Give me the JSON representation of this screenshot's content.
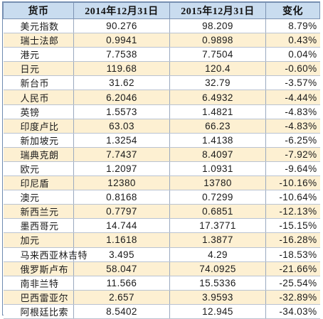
{
  "table": {
    "headers": [
      "货币",
      "2014年12月31日",
      "2015年12月31日",
      "变化"
    ],
    "rows": [
      {
        "currency": "美元指数",
        "v2014": "90.276",
        "v2015": "98.209",
        "change": "8.79%"
      },
      {
        "currency": "瑞士法郎",
        "v2014": "0.9941",
        "v2015": "0.9898",
        "change": "0.43%"
      },
      {
        "currency": "港元",
        "v2014": "7.7538",
        "v2015": "7.7504",
        "change": "0.04%"
      },
      {
        "currency": "日元",
        "v2014": "119.68",
        "v2015": "120.4",
        "change": "-0.60%"
      },
      {
        "currency": "新台币",
        "v2014": "31.62",
        "v2015": "32.79",
        "change": "-3.57%"
      },
      {
        "currency": "人民币",
        "v2014": "6.2046",
        "v2015": "6.4932",
        "change": "-4.44%"
      },
      {
        "currency": "英镑",
        "v2014": "1.5573",
        "v2015": "1.4821",
        "change": "-4.83%"
      },
      {
        "currency": "印度卢比",
        "v2014": "63.03",
        "v2015": "66.23",
        "change": "-4.83%"
      },
      {
        "currency": "新加坡元",
        "v2014": "1.3254",
        "v2015": "1.4138",
        "change": "-6.25%"
      },
      {
        "currency": "瑞典克朗",
        "v2014": "7.7437",
        "v2015": "8.4097",
        "change": "-7.92%"
      },
      {
        "currency": "欧元",
        "v2014": "1.2097",
        "v2015": "1.0931",
        "change": "-9.64%"
      },
      {
        "currency": "印尼盾",
        "v2014": "12380",
        "v2015": "13780",
        "change": "-10.16%"
      },
      {
        "currency": "澳元",
        "v2014": "0.8168",
        "v2015": "0.7299",
        "change": "-10.64%"
      },
      {
        "currency": "新西兰元",
        "v2014": "0.7797",
        "v2015": "0.6851",
        "change": "-12.13%"
      },
      {
        "currency": "墨西哥元",
        "v2014": "14.744",
        "v2015": "17.3771",
        "change": "-15.15%"
      },
      {
        "currency": "加元",
        "v2014": "1.1618",
        "v2015": "1.3877",
        "change": "-16.28%"
      },
      {
        "currency": "马来西亚林吉特",
        "v2014": "3.495",
        "v2015": "4.29",
        "change": "-18.53%"
      },
      {
        "currency": "俄罗斯卢布",
        "v2014": "58.047",
        "v2015": "74.0925",
        "change": "-21.66%"
      },
      {
        "currency": "南非兰特",
        "v2014": "11.566",
        "v2015": "15.5336",
        "change": "-25.54%"
      },
      {
        "currency": "巴西雷亚尔",
        "v2014": "2.657",
        "v2015": "3.9593",
        "change": "-32.89%"
      },
      {
        "currency": "阿根廷比索",
        "v2014": "8.5402",
        "v2015": "12.945",
        "change": "-34.03%"
      }
    ]
  },
  "colors": {
    "header_bg": "#c9dcef",
    "row_alt_bg": "#fdf0d2",
    "row_bg": "#ffffff",
    "border": "#7d93b3"
  }
}
